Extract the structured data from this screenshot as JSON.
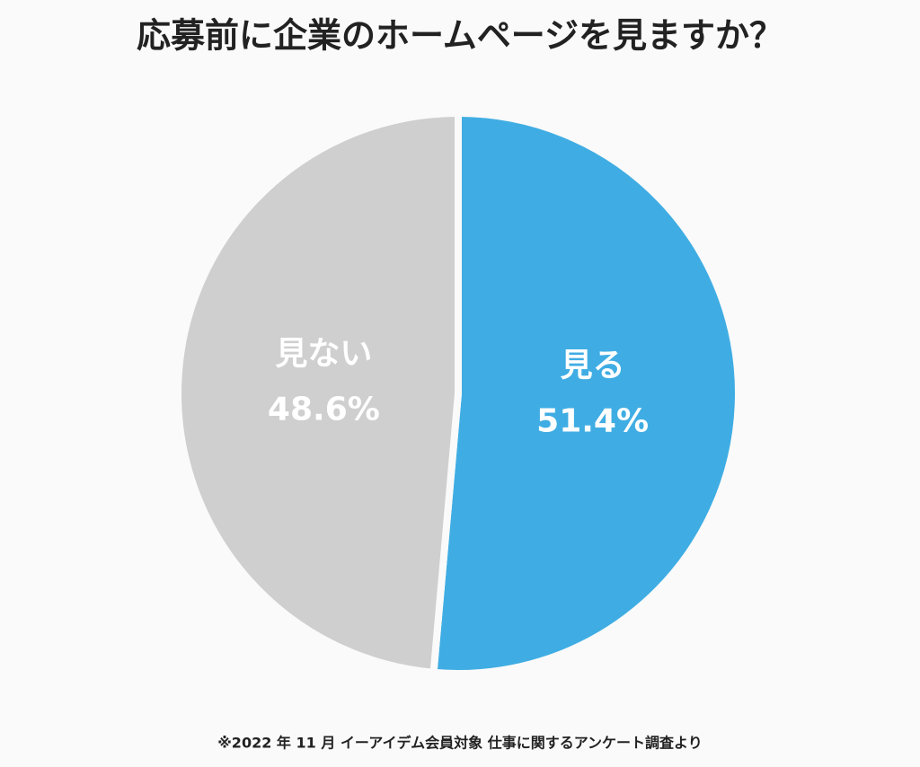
{
  "chart_data": {
    "type": "pie",
    "title": "応募前に企業のホームページを見ますか？",
    "categories": [
      "見る",
      "見ない"
    ],
    "values": [
      51.4,
      48.6
    ],
    "value_labels": [
      "51.4%",
      "48.6%"
    ],
    "colors": [
      "#3fade3",
      "#cfcfcf"
    ],
    "footnote": "※2022 年 11 月 イーアイデム会員対象 仕事に関するアンケート調査より"
  }
}
